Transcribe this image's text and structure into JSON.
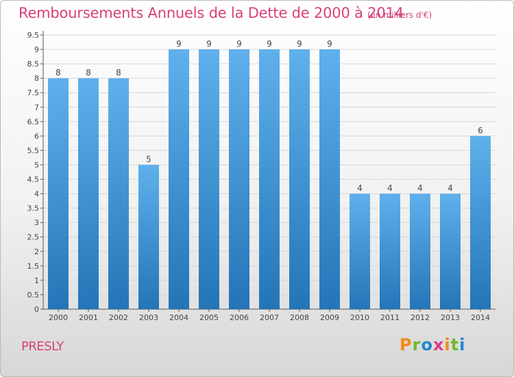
{
  "header": {
    "title": "Remboursements Annuels de la Dette de 2000 à 2014",
    "unit": "(en milliers d'€)"
  },
  "footer": {
    "commune": "PRESLY",
    "logo": "Proxiti"
  },
  "colors": {
    "title": "#d7407a",
    "bar_top": "#5fb0ec",
    "bar_bottom": "#2475b7",
    "logo_letters": [
      "#f08a18",
      "#6fb828",
      "#1e88d0",
      "#e43a86",
      "#f08a18",
      "#6fb828",
      "#1e88d0"
    ]
  },
  "chart_data": {
    "type": "bar",
    "title": "Remboursements Annuels de la Dette de 2000 à 2014",
    "categories": [
      "2000",
      "2001",
      "2002",
      "2003",
      "2004",
      "2005",
      "2006",
      "2007",
      "2008",
      "2009",
      "2010",
      "2011",
      "2012",
      "2013",
      "2014"
    ],
    "values": [
      8,
      8,
      8,
      5,
      9,
      9,
      9,
      9,
      9,
      9,
      4,
      4,
      4,
      4,
      6
    ],
    "data_labels": [
      "8",
      "8",
      "8",
      "5",
      "9",
      "9",
      "9",
      "9",
      "9",
      "9",
      "4",
      "4",
      "4",
      "4",
      "6"
    ],
    "yticks": [
      "0",
      "0.5",
      "1",
      "1.5",
      "2",
      "2.5",
      "3",
      "3.5",
      "4",
      "4.5",
      "5",
      "5.5",
      "6",
      "6.5",
      "7",
      "7.5",
      "8",
      "8.5",
      "9",
      "9.5"
    ],
    "ylim": [
      0,
      9.5
    ],
    "grid": true
  }
}
